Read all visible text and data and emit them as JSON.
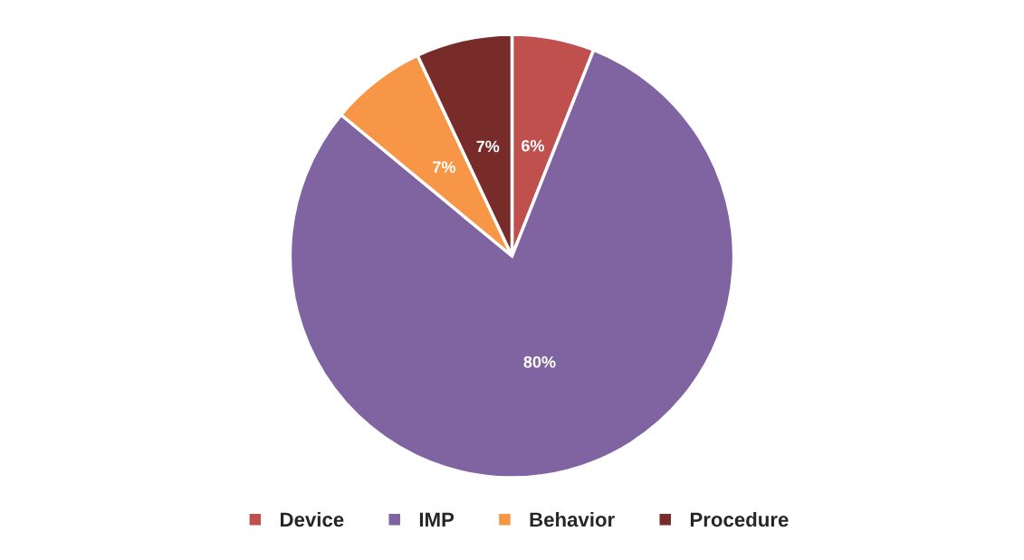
{
  "chart_data": {
    "type": "pie",
    "categories": [
      "Device",
      "IMP",
      "Behavior",
      "Procedure"
    ],
    "values": [
      6,
      80,
      7,
      7
    ],
    "colors": [
      "#c0504d",
      "#8064a2",
      "#f79646",
      "#772c2a"
    ],
    "value_labels": [
      "6%",
      "80%",
      "7%",
      "7%"
    ],
    "legend": "bottom"
  }
}
